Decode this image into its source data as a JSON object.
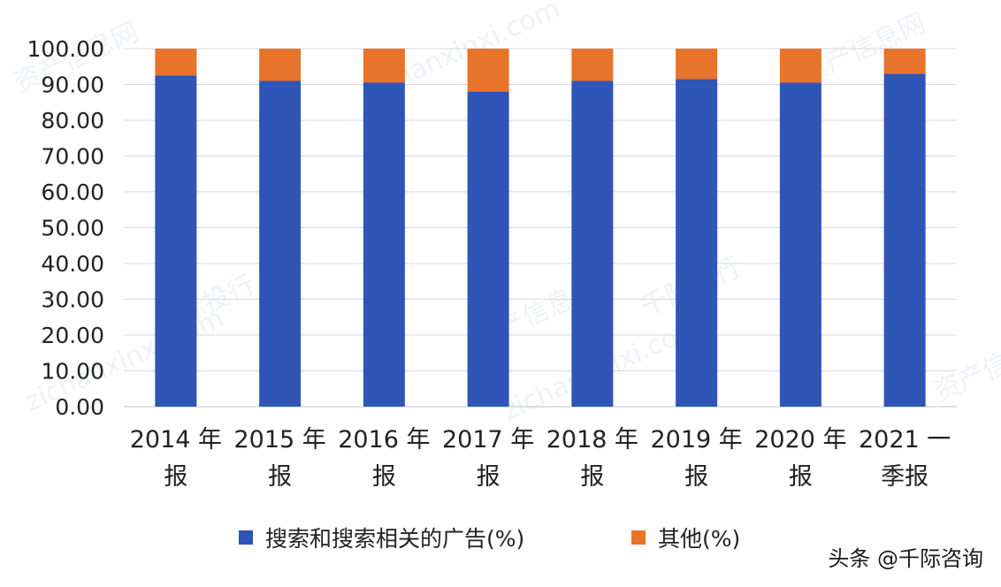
{
  "chart_data": {
    "type": "bar",
    "stacked": true,
    "categories": [
      [
        "2014 年",
        "报"
      ],
      [
        "2015 年",
        "报"
      ],
      [
        "2016 年",
        "报"
      ],
      [
        "2017 年",
        "报"
      ],
      [
        "2018 年",
        "报"
      ],
      [
        "2019 年",
        "报"
      ],
      [
        "2020 年",
        "报"
      ],
      [
        "2021 一",
        "季报"
      ]
    ],
    "series": [
      {
        "name": "搜索和搜索相关的广告(%)",
        "color": "#2f55b7",
        "values": [
          92.5,
          91.0,
          90.5,
          88.0,
          91.0,
          91.5,
          90.5,
          93.0
        ]
      },
      {
        "name": "其他(%)",
        "color": "#e8732a",
        "values": [
          7.5,
          9.0,
          9.5,
          12.0,
          9.0,
          8.5,
          9.5,
          7.0
        ]
      }
    ],
    "yticks": [
      "0.00",
      "10.00",
      "20.00",
      "30.00",
      "40.00",
      "50.00",
      "60.00",
      "70.00",
      "80.00",
      "90.00",
      "100.00"
    ],
    "ylim": [
      0,
      100
    ],
    "grid": true,
    "legend_position": "bottom"
  },
  "watermarks": [
    "资产信息网",
    "zichanxinxi.com",
    "千际投行"
  ],
  "credit": "头条 @千际咨询"
}
